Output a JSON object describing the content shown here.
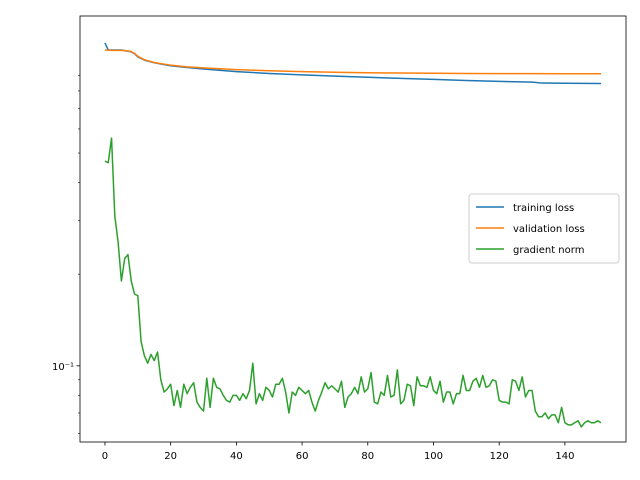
{
  "chart_data": {
    "type": "line",
    "title": "",
    "xlabel": "",
    "ylabel": "",
    "yscale": "log",
    "xlim": [
      -7.6,
      158.6
    ],
    "ylim": [
      0.0562,
      1.41
    ],
    "grid": false,
    "legend": "center-right",
    "x_ticks": [
      0,
      20,
      40,
      60,
      80,
      100,
      120,
      140
    ],
    "x_tick_labels": [
      "0",
      "20",
      "40",
      "60",
      "80",
      "100",
      "120",
      "140"
    ],
    "y_ticks": [
      0.1
    ],
    "y_tick_labels": [
      "10⁻¹"
    ],
    "series": [
      {
        "name": "training loss",
        "color": "#1f77b4",
        "x": [
          0,
          1,
          2,
          3,
          4,
          5,
          6,
          7,
          8,
          9,
          10,
          12,
          15,
          20,
          25,
          30,
          40,
          50,
          60,
          70,
          80,
          90,
          100,
          110,
          120,
          130,
          133,
          140,
          151
        ],
        "values": [
          1.15,
          1.09,
          1.09,
          1.09,
          1.09,
          1.09,
          1.085,
          1.08,
          1.075,
          1.06,
          1.035,
          1.01,
          0.99,
          0.968,
          0.955,
          0.944,
          0.926,
          0.913,
          0.903,
          0.895,
          0.887,
          0.88,
          0.873,
          0.866,
          0.86,
          0.855,
          0.849,
          0.848,
          0.846
        ]
      },
      {
        "name": "validation loss",
        "color": "#ff7f0e",
        "x": [
          0,
          1,
          2,
          3,
          4,
          5,
          6,
          7,
          8,
          9,
          10,
          12,
          15,
          20,
          25,
          30,
          40,
          50,
          60,
          70,
          80,
          90,
          100,
          110,
          120,
          130,
          140,
          151
        ],
        "values": [
          1.09,
          1.088,
          1.087,
          1.087,
          1.087,
          1.087,
          1.085,
          1.082,
          1.078,
          1.063,
          1.04,
          1.013,
          0.992,
          0.972,
          0.96,
          0.952,
          0.94,
          0.932,
          0.926,
          0.921,
          0.918,
          0.916,
          0.914,
          0.913,
          0.912,
          0.912,
          0.911,
          0.911
        ]
      },
      {
        "name": "gradient norm",
        "color": "#2ca02c",
        "x": [
          0,
          1,
          2,
          3,
          4,
          5,
          6,
          7,
          8,
          9,
          10,
          11,
          12,
          13,
          14,
          15,
          16,
          17,
          18,
          19,
          20,
          21,
          22,
          23,
          24,
          25,
          26,
          27,
          28,
          29,
          30,
          31,
          32,
          33,
          34,
          35,
          36,
          37,
          38,
          39,
          40,
          41,
          42,
          43,
          44,
          45,
          46,
          47,
          48,
          49,
          50,
          51,
          52,
          53,
          54,
          55,
          56,
          57,
          58,
          59,
          60,
          61,
          62,
          63,
          64,
          65,
          66,
          67,
          68,
          69,
          70,
          71,
          72,
          73,
          74,
          75,
          76,
          77,
          78,
          79,
          80,
          81,
          82,
          83,
          84,
          85,
          86,
          87,
          88,
          89,
          90,
          91,
          92,
          93,
          94,
          95,
          96,
          97,
          98,
          99,
          100,
          101,
          102,
          103,
          104,
          105,
          106,
          107,
          108,
          109,
          110,
          111,
          112,
          113,
          114,
          115,
          116,
          117,
          118,
          119,
          120,
          121,
          122,
          123,
          124,
          125,
          126,
          127,
          128,
          129,
          130,
          131,
          132,
          133,
          134,
          135,
          136,
          137,
          138,
          139,
          140,
          141,
          142,
          143,
          144,
          145,
          146,
          147,
          148,
          149,
          150,
          151
        ],
        "values": [
          0.47,
          0.465,
          0.56,
          0.31,
          0.255,
          0.19,
          0.225,
          0.232,
          0.19,
          0.172,
          0.17,
          0.12,
          0.108,
          0.102,
          0.109,
          0.104,
          0.111,
          0.09,
          0.082,
          0.084,
          0.087,
          0.074,
          0.083,
          0.073,
          0.087,
          0.081,
          0.085,
          0.088,
          0.076,
          0.073,
          0.071,
          0.091,
          0.073,
          0.091,
          0.085,
          0.084,
          0.08,
          0.077,
          0.076,
          0.08,
          0.08,
          0.077,
          0.081,
          0.078,
          0.083,
          0.102,
          0.075,
          0.081,
          0.077,
          0.085,
          0.083,
          0.079,
          0.087,
          0.087,
          0.091,
          0.082,
          0.07,
          0.082,
          0.08,
          0.085,
          0.083,
          0.081,
          0.083,
          0.076,
          0.071,
          0.077,
          0.082,
          0.088,
          0.084,
          0.086,
          0.084,
          0.082,
          0.089,
          0.073,
          0.079,
          0.081,
          0.085,
          0.081,
          0.092,
          0.082,
          0.084,
          0.095,
          0.076,
          0.075,
          0.082,
          0.08,
          0.093,
          0.079,
          0.08,
          0.097,
          0.075,
          0.077,
          0.087,
          0.086,
          0.074,
          0.092,
          0.086,
          0.086,
          0.085,
          0.092,
          0.083,
          0.081,
          0.089,
          0.076,
          0.082,
          0.082,
          0.075,
          0.081,
          0.081,
          0.093,
          0.083,
          0.083,
          0.089,
          0.091,
          0.085,
          0.093,
          0.085,
          0.086,
          0.09,
          0.089,
          0.077,
          0.076,
          0.076,
          0.075,
          0.09,
          0.089,
          0.083,
          0.092,
          0.079,
          0.083,
          0.083,
          0.071,
          0.068,
          0.068,
          0.07,
          0.067,
          0.069,
          0.069,
          0.065,
          0.073,
          0.065,
          0.064,
          0.064,
          0.065,
          0.066,
          0.063,
          0.065,
          0.066,
          0.065,
          0.065,
          0.066,
          0.065
        ]
      }
    ]
  }
}
